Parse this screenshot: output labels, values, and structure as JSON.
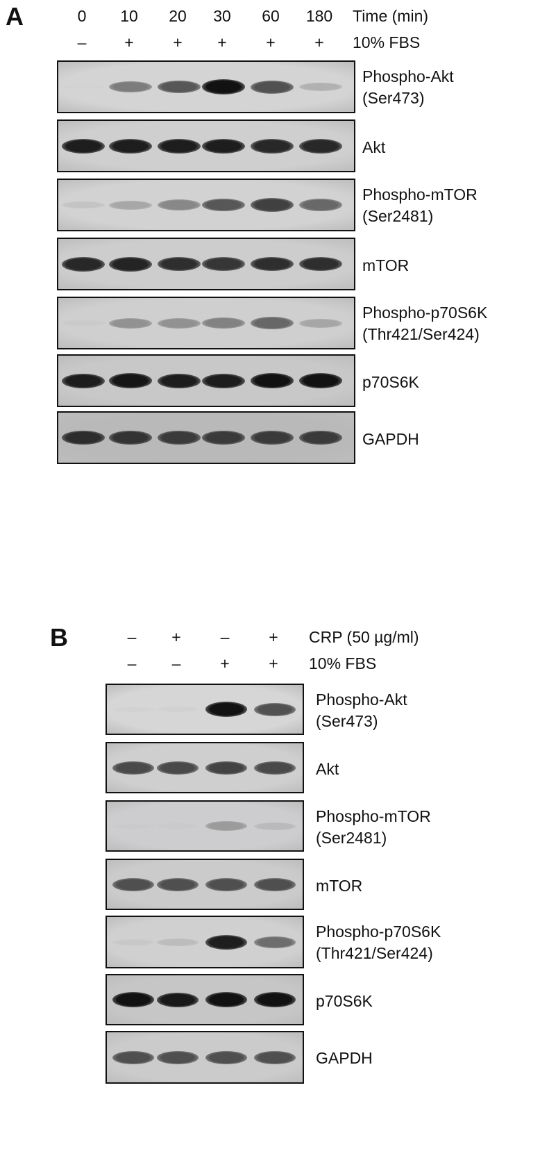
{
  "panelA": {
    "letter": "A",
    "time_label": "Time (min)",
    "times": [
      "0",
      "10",
      "20",
      "30",
      "60",
      "180"
    ],
    "fbs_label": "10% FBS",
    "fbs": [
      "–",
      "+",
      "+",
      "+",
      "+",
      "+"
    ],
    "blots": [
      {
        "line1": "Phospho-Akt",
        "line2": "(Ser473)",
        "bg": "#d4d4d4",
        "intensity": [
          0.0,
          0.65,
          0.78,
          0.98,
          0.8,
          0.4
        ]
      },
      {
        "line1": "Akt",
        "line2": "",
        "bg": "#cfcfcf",
        "intensity": [
          0.95,
          0.95,
          0.95,
          0.95,
          0.92,
          0.92
        ]
      },
      {
        "line1": "Phospho-mTOR",
        "line2": "(Ser2481)",
        "bg": "#d2d2d2",
        "intensity": [
          0.25,
          0.45,
          0.6,
          0.78,
          0.85,
          0.72
        ]
      },
      {
        "line1": "mTOR",
        "line2": "",
        "bg": "#cdcdcd",
        "intensity": [
          0.92,
          0.93,
          0.9,
          0.88,
          0.9,
          0.9
        ]
      },
      {
        "line1": "Phospho-p70S6K",
        "line2": "(Thr421/Ser424)",
        "bg": "#cfcfcf",
        "intensity": [
          0.15,
          0.55,
          0.55,
          0.62,
          0.72,
          0.45
        ]
      },
      {
        "line1": "p70S6K",
        "line2": "",
        "bg": "#c8c8c8",
        "intensity": [
          0.95,
          0.97,
          0.95,
          0.95,
          0.98,
          0.98
        ]
      },
      {
        "line1": "GAPDH",
        "line2": "",
        "bg": "#b9b9b9",
        "intensity": [
          0.9,
          0.88,
          0.86,
          0.86,
          0.86,
          0.86
        ]
      }
    ]
  },
  "panelB": {
    "letter": "B",
    "crp_label": "CRP (50 µg/ml)",
    "crp": [
      "–",
      "+",
      "–",
      "+"
    ],
    "fbs_label": "10% FBS",
    "fbs": [
      "–",
      "–",
      "+",
      "+"
    ],
    "blots": [
      {
        "line1": "Phospho-Akt",
        "line2": "(Ser473)",
        "bg": "#d6d6d6",
        "intensity": [
          0.08,
          0.1,
          0.98,
          0.8
        ]
      },
      {
        "line1": "Akt",
        "line2": "",
        "bg": "#cfcfcf",
        "intensity": [
          0.82,
          0.82,
          0.84,
          0.82
        ]
      },
      {
        "line1": "Phospho-mTOR",
        "line2": "(Ser2481)",
        "bg": "#cdcdd0",
        "intensity": [
          0.08,
          0.1,
          0.5,
          0.3
        ]
      },
      {
        "line1": "mTOR",
        "line2": "",
        "bg": "#cbcbcb",
        "intensity": [
          0.8,
          0.8,
          0.8,
          0.8
        ]
      },
      {
        "line1": "Phospho-p70S6K",
        "line2": "(Thr421/Ser424)",
        "bg": "#d0d0d0",
        "intensity": [
          0.18,
          0.3,
          0.95,
          0.7
        ]
      },
      {
        "line1": "p70S6K",
        "line2": "",
        "bg": "#c6c6c6",
        "intensity": [
          0.98,
          0.96,
          0.98,
          0.98
        ]
      },
      {
        "line1": "GAPDH",
        "line2": "",
        "bg": "#cbcbcb",
        "intensity": [
          0.8,
          0.8,
          0.8,
          0.8
        ]
      }
    ]
  }
}
